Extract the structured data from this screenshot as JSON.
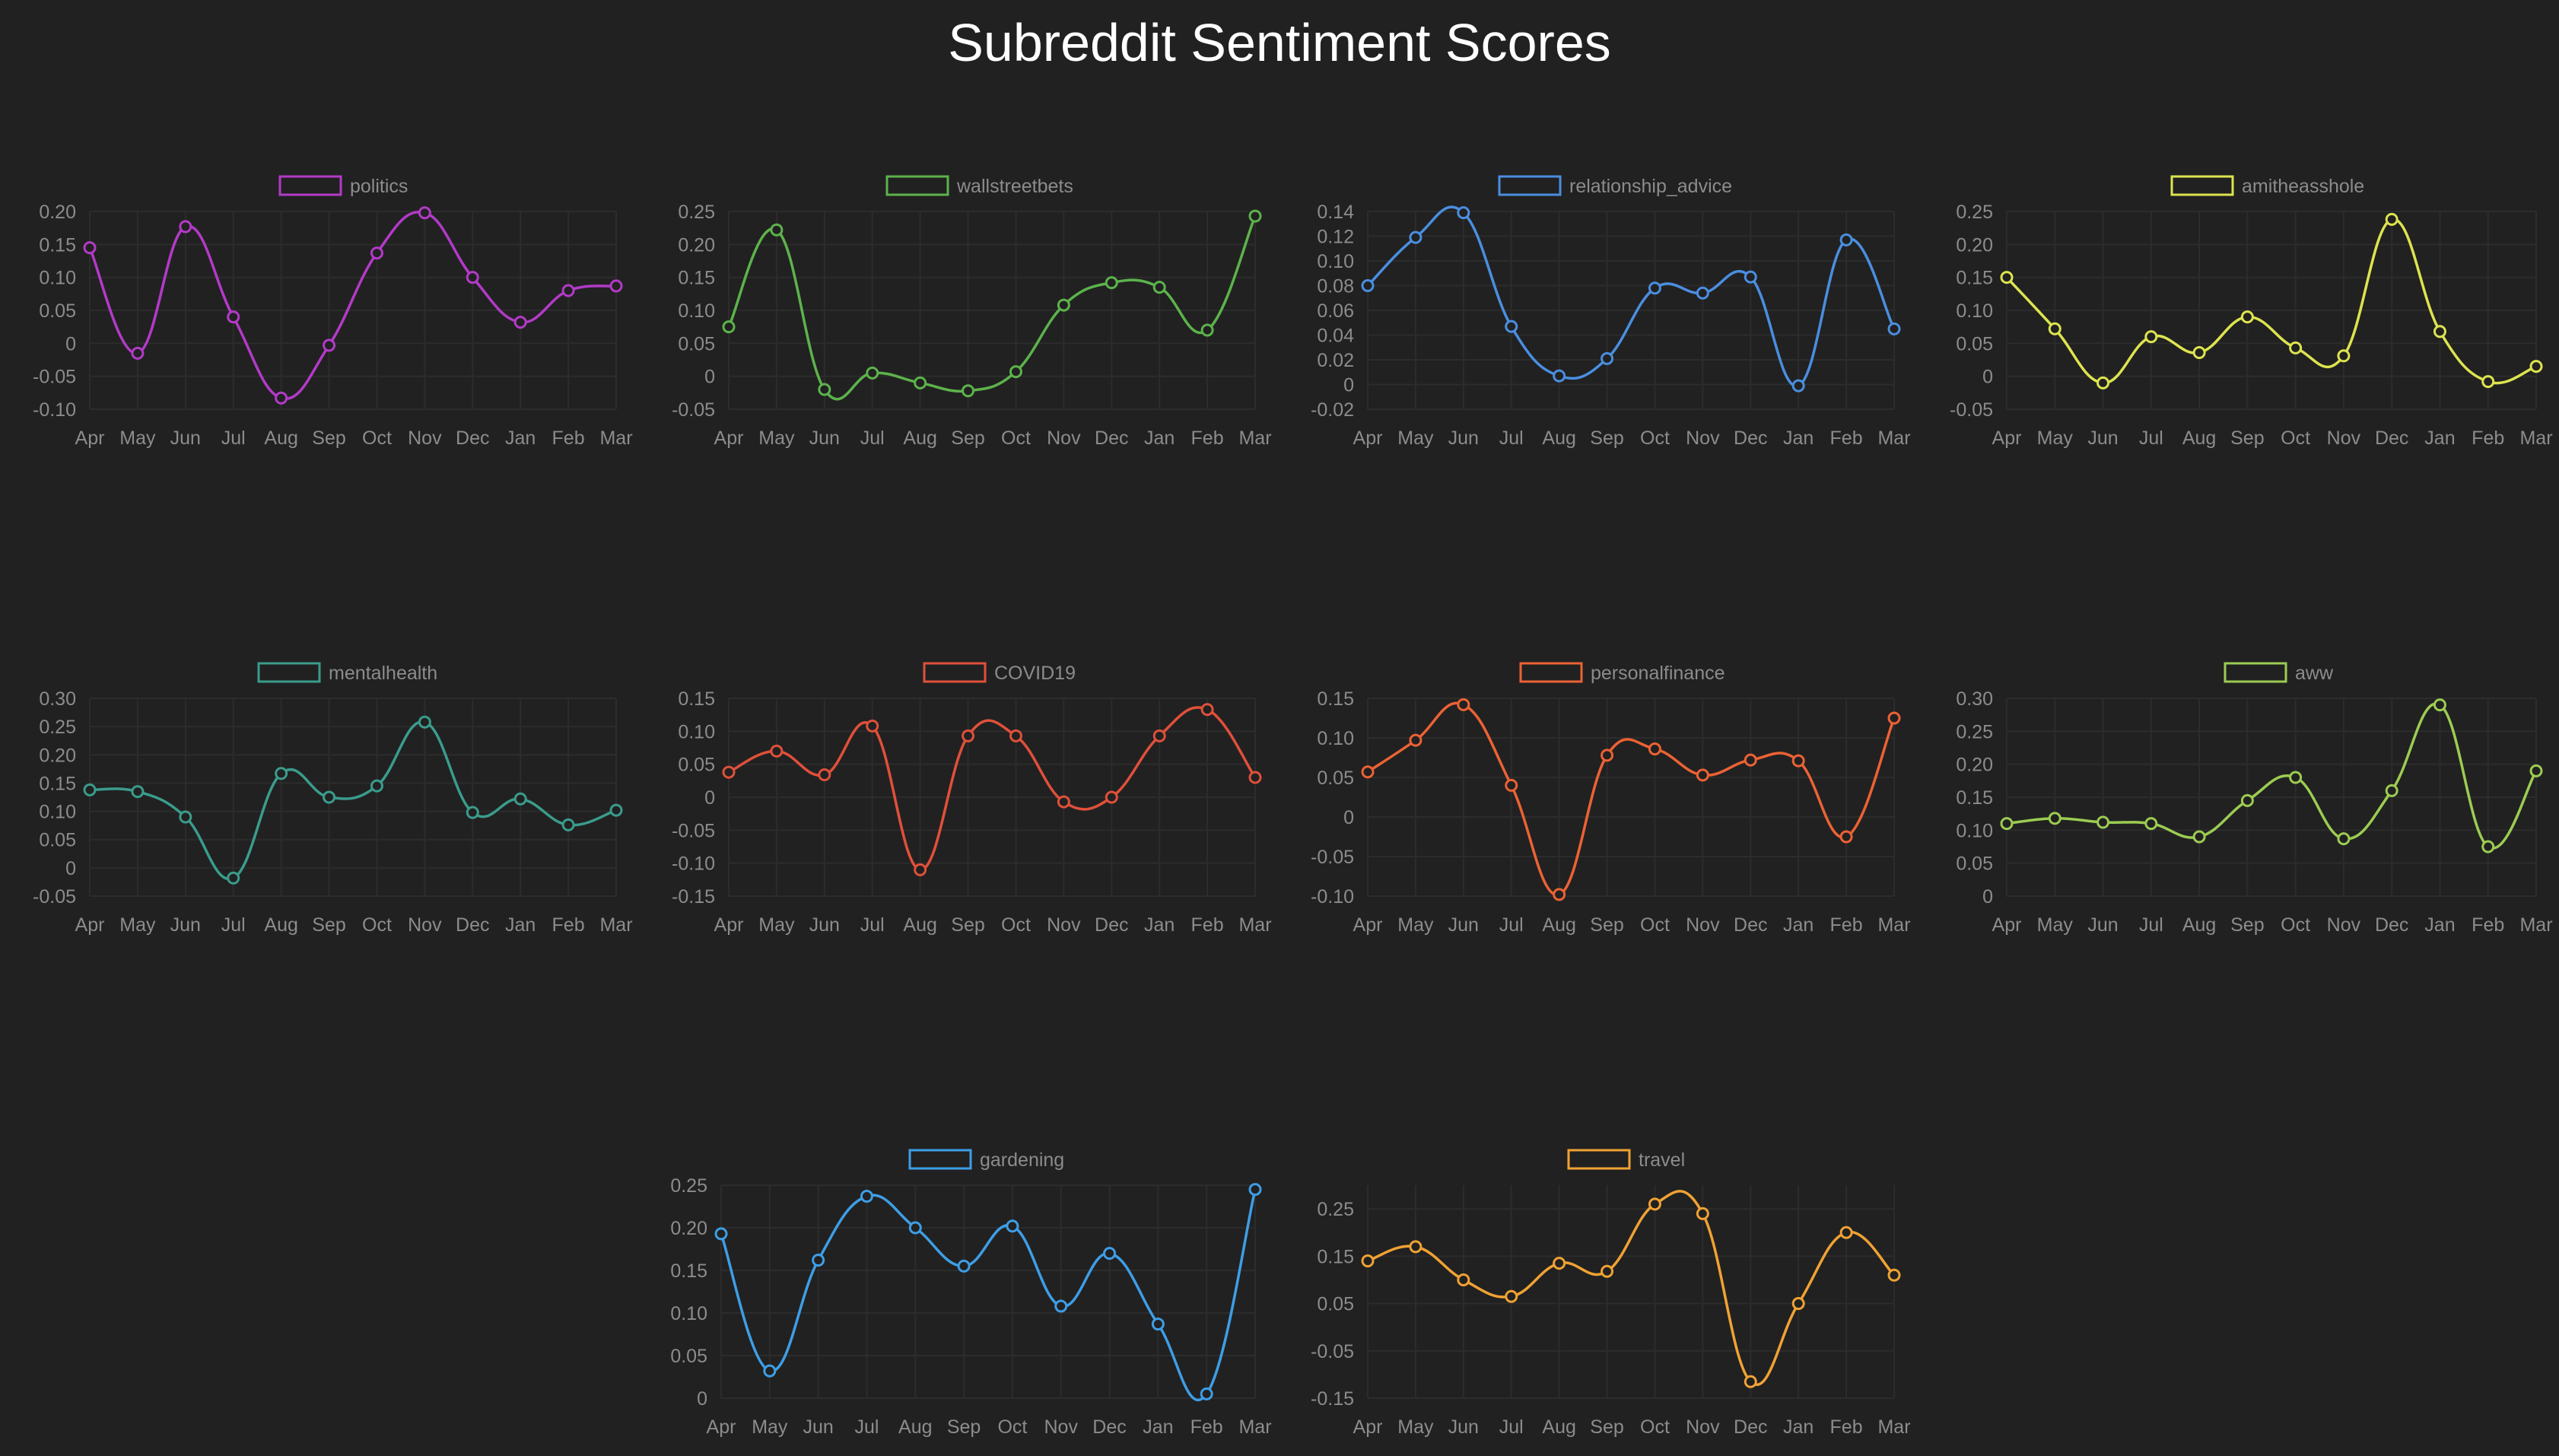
{
  "title": "Subreddit Sentiment Scores",
  "chart_data": [
    {
      "type": "line",
      "name": "politics",
      "color": "#b33ac8",
      "categories": [
        "Apr",
        "May",
        "Jun",
        "Jul",
        "Aug",
        "Sep",
        "Oct",
        "Nov",
        "Dec",
        "Jan",
        "Feb",
        "Mar"
      ],
      "values": [
        0.145,
        -0.015,
        0.177,
        0.04,
        -0.083,
        -0.003,
        0.137,
        0.198,
        0.1,
        0.032,
        0.08,
        0.087
      ],
      "yticks": [
        "0.20",
        "0.15",
        "0.10",
        "0.05",
        "0",
        "-0.05",
        "-0.10"
      ],
      "ylim": [
        -0.1,
        0.2
      ]
    },
    {
      "type": "line",
      "name": "wallstreetbets",
      "color": "#5cb34b",
      "categories": [
        "Apr",
        "May",
        "Jun",
        "Jul",
        "Aug",
        "Sep",
        "Oct",
        "Nov",
        "Dec",
        "Jan",
        "Feb",
        "Mar"
      ],
      "values": [
        0.075,
        0.222,
        -0.02,
        0.005,
        -0.01,
        -0.022,
        0.007,
        0.108,
        0.142,
        0.135,
        0.07,
        0.243
      ],
      "yticks": [
        "0.25",
        "0.20",
        "0.15",
        "0.10",
        "0.05",
        "0",
        "-0.05"
      ],
      "ylim": [
        -0.05,
        0.25
      ]
    },
    {
      "type": "line",
      "name": "relationship_advice",
      "color": "#4a8ee0",
      "categories": [
        "Apr",
        "May",
        "Jun",
        "Jul",
        "Aug",
        "Sep",
        "Oct",
        "Nov",
        "Dec",
        "Jan",
        "Feb",
        "Mar"
      ],
      "values": [
        0.08,
        0.119,
        0.139,
        0.047,
        0.007,
        0.021,
        0.078,
        0.074,
        0.087,
        -0.001,
        0.117,
        0.045
      ],
      "yticks": [
        "0.14",
        "0.12",
        "0.10",
        "0.08",
        "0.06",
        "0.04",
        "0.02",
        "0",
        "-0.02"
      ],
      "ylim": [
        -0.02,
        0.14
      ]
    },
    {
      "type": "line",
      "name": "amitheasshole",
      "color": "#dde44f",
      "categories": [
        "Apr",
        "May",
        "Jun",
        "Jul",
        "Aug",
        "Sep",
        "Oct",
        "Nov",
        "Dec",
        "Jan",
        "Feb",
        "Mar"
      ],
      "values": [
        0.15,
        0.072,
        -0.01,
        0.06,
        0.036,
        0.09,
        0.043,
        0.031,
        0.238,
        0.068,
        -0.008,
        0.015
      ],
      "yticks": [
        "0.25",
        "0.20",
        "0.15",
        "0.10",
        "0.05",
        "0",
        "-0.05"
      ],
      "ylim": [
        -0.05,
        0.25
      ]
    },
    {
      "type": "line",
      "name": "mentalhealth",
      "color": "#3a9c8c",
      "categories": [
        "Apr",
        "May",
        "Jun",
        "Jul",
        "Aug",
        "Sep",
        "Oct",
        "Nov",
        "Dec",
        "Jan",
        "Feb",
        "Mar"
      ],
      "values": [
        0.138,
        0.135,
        0.09,
        -0.018,
        0.167,
        0.125,
        0.145,
        0.258,
        0.098,
        0.122,
        0.076,
        0.102
      ],
      "yticks": [
        "0.30",
        "0.25",
        "0.20",
        "0.15",
        "0.10",
        "0.05",
        "0",
        "-0.05"
      ],
      "ylim": [
        -0.05,
        0.3
      ]
    },
    {
      "type": "line",
      "name": "COVID19",
      "color": "#e0503a",
      "categories": [
        "Apr",
        "May",
        "Jun",
        "Jul",
        "Aug",
        "Sep",
        "Oct",
        "Nov",
        "Dec",
        "Jan",
        "Feb",
        "Mar"
      ],
      "values": [
        0.038,
        0.07,
        0.034,
        0.108,
        -0.11,
        0.093,
        0.093,
        -0.007,
        0.0,
        0.093,
        0.133,
        0.03
      ],
      "yticks": [
        "0.15",
        "0.10",
        "0.05",
        "0",
        "-0.05",
        "-0.10",
        "-0.15"
      ],
      "ylim": [
        -0.15,
        0.15
      ]
    },
    {
      "type": "line",
      "name": "personalfinance",
      "color": "#ec6234",
      "categories": [
        "Apr",
        "May",
        "Jun",
        "Jul",
        "Aug",
        "Sep",
        "Oct",
        "Nov",
        "Dec",
        "Jan",
        "Feb",
        "Mar"
      ],
      "values": [
        0.057,
        0.097,
        0.142,
        0.04,
        -0.098,
        0.078,
        0.086,
        0.053,
        0.072,
        0.071,
        -0.025,
        0.125
      ],
      "yticks": [
        "0.15",
        "0.10",
        "0.05",
        "0",
        "-0.05",
        "-0.10"
      ],
      "ylim": [
        -0.1,
        0.15
      ]
    },
    {
      "type": "line",
      "name": "aww",
      "color": "#9ccc52",
      "categories": [
        "Apr",
        "May",
        "Jun",
        "Jul",
        "Aug",
        "Sep",
        "Oct",
        "Nov",
        "Dec",
        "Jan",
        "Feb",
        "Mar"
      ],
      "values": [
        0.11,
        0.118,
        0.112,
        0.11,
        0.09,
        0.145,
        0.18,
        0.087,
        0.16,
        0.29,
        0.075,
        0.19
      ],
      "yticks": [
        "0.30",
        "0.25",
        "0.20",
        "0.15",
        "0.10",
        "0.05",
        "0"
      ],
      "ylim": [
        0,
        0.3
      ]
    },
    {
      "type": "line",
      "name": "gardening",
      "color": "#3e9ee6",
      "categories": [
        "Apr",
        "May",
        "Jun",
        "Jul",
        "Aug",
        "Sep",
        "Oct",
        "Nov",
        "Dec",
        "Jan",
        "Feb",
        "Mar"
      ],
      "values": [
        0.193,
        0.032,
        0.162,
        0.237,
        0.2,
        0.155,
        0.202,
        0.108,
        0.17,
        0.087,
        0.005,
        0.245
      ],
      "yticks": [
        "0.25",
        "0.20",
        "0.15",
        "0.10",
        "0.05",
        "0"
      ],
      "ylim": [
        0,
        0.25
      ]
    },
    {
      "type": "line",
      "name": "travel",
      "color": "#f0a233",
      "categories": [
        "Apr",
        "May",
        "Jun",
        "Jul",
        "Aug",
        "Sep",
        "Oct",
        "Nov",
        "Dec",
        "Jan",
        "Feb",
        "Mar"
      ],
      "values": [
        0.14,
        0.17,
        0.1,
        0.065,
        0.135,
        0.118,
        0.26,
        0.24,
        -0.115,
        0.05,
        0.2,
        0.11
      ],
      "yticks": [
        "0.25",
        "0.15",
        "0.05",
        "-0.05",
        "-0.15"
      ],
      "ylim": [
        -0.15,
        0.3
      ]
    }
  ]
}
